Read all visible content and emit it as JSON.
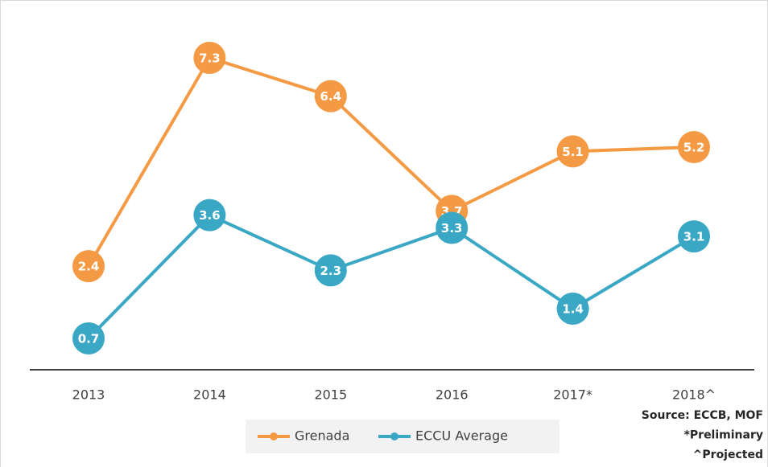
{
  "chart_data": {
    "type": "line",
    "categories": [
      "2013",
      "2014",
      "2015",
      "2016",
      "2017*",
      "2018^"
    ],
    "series": [
      {
        "name": "Grenada",
        "color": "#f59a44",
        "values": [
          2.4,
          7.3,
          6.4,
          3.7,
          5.1,
          5.2
        ]
      },
      {
        "name": "ECCU Average",
        "color": "#3aa8c5",
        "values": [
          0.7,
          3.6,
          2.3,
          3.3,
          1.4,
          3.1
        ]
      }
    ],
    "annotations": [
      "Source: ECCB, MOF",
      "*Preliminary",
      "^Projected"
    ],
    "legend": "bottom"
  }
}
